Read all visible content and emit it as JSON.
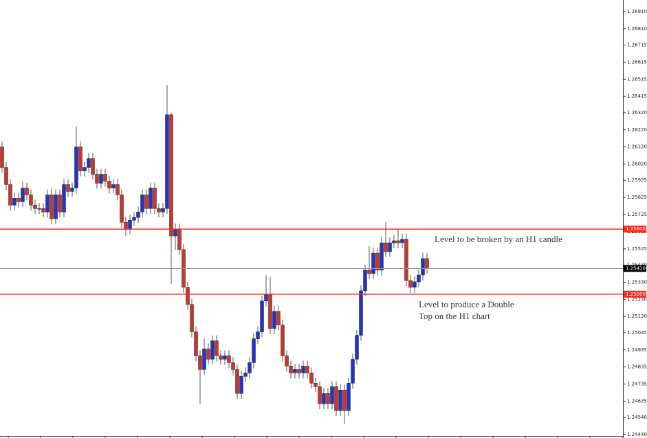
{
  "chart_data": {
    "type": "candlestick",
    "up_color": "#2233cc",
    "down_color": "#c8382a",
    "wick_color": "#555555",
    "ylim": [
      1.2442,
      1.26978
    ],
    "yticks": [
      {
        "value": 1.2691,
        "label": "1.26910"
      },
      {
        "value": 1.2681,
        "label": "1.26810"
      },
      1.26715,
      1.26615,
      1.26515,
      1.26415,
      {
        "value": 1.2632,
        "label": "1.26320"
      },
      {
        "value": 1.2622,
        "label": "1.26220"
      },
      {
        "value": 1.2612,
        "label": "1.26120"
      },
      {
        "value": 1.2602,
        "label": "1.26020"
      },
      1.25925,
      1.25825,
      1.25725,
      1.25625,
      1.25525,
      {
        "value": 1.2543,
        "label": "1.25430"
      },
      {
        "value": 1.2533,
        "label": "1.25330"
      },
      {
        "value": 1.2523,
        "label": "1.25230"
      },
      {
        "value": 1.2513,
        "label": "1.25130"
      },
      1.25035,
      1.24935,
      1.24835,
      1.24735,
      1.24635,
      {
        "value": 1.2454,
        "label": "1.24540"
      },
      {
        "value": 1.2444,
        "label": "1.24440"
      }
    ],
    "hlines": [
      {
        "value": 1.2564,
        "label": "1.25640",
        "color": "#ff2a1a",
        "box": "#ff2a1a"
      },
      {
        "value": 1.2541,
        "label": "1.25410",
        "color": "#999999",
        "box": "#000000"
      },
      {
        "value": 1.2526,
        "label": "1.25260",
        "color": "#ff2a1a",
        "box": "#ff2a1a"
      }
    ],
    "annotations": [
      {
        "lines": [
          "Level to be broken by an H1 candle"
        ]
      },
      {
        "lines": [
          "Level to produce a Double",
          "Top on the H1 chart"
        ]
      }
    ],
    "open": [
      1.2612,
      1.26,
      1.259,
      1.2578,
      1.2582,
      1.258,
      1.2588,
      1.2584,
      1.2578,
      1.2576,
      1.2576,
      1.2574,
      1.2584,
      1.257,
      1.2584,
      1.2574,
      1.259,
      1.2586,
      1.2588,
      1.2612,
      1.2598,
      1.26,
      1.26052,
      1.2596,
      1.25908,
      1.2596,
      1.2592,
      1.2588,
      1.259,
      1.2584,
      1.2568,
      1.2564,
      1.25692,
      1.25708,
      1.2574,
      1.2584,
      1.2576,
      1.2588,
      1.2576,
      1.2574,
      1.2576,
      1.26308,
      1.256,
      1.2564,
      1.2552,
      1.253,
      1.252,
      1.2504,
      1.249,
      1.2482,
      1.2494,
      1.2488,
      1.24988,
      1.249,
      1.2488,
      1.249,
      1.2486,
      1.2482,
      1.2468,
      1.2478,
      1.248,
      1.2486,
      1.25,
      1.2504,
      1.2522,
      1.2526,
      1.2506,
      1.2516,
      1.2508,
      1.249,
      1.2484,
      1.248,
      1.2482,
      1.248,
      1.2484,
      1.248,
      1.2474,
      1.2472,
      1.2462,
      1.2468,
      1.2462,
      1.2472,
      1.2458,
      1.247,
      1.2458,
      1.2474,
      1.2488,
      1.2502,
      1.2528,
      1.254,
      1.2538,
      1.255,
      1.254,
      1.2556,
      1.25508,
      1.2556,
      1.25572,
      1.2556,
      1.2558,
      1.2534,
      1.253,
      1.25332,
      1.25372,
      1.25468
    ],
    "high": [
      1.26152,
      1.26032,
      1.25932,
      1.25852,
      1.25852,
      1.2592,
      1.25912,
      1.25872,
      1.25812,
      1.25792,
      1.25792,
      1.25872,
      1.2588,
      1.25872,
      1.25872,
      1.25932,
      1.25932,
      1.25912,
      1.2624,
      1.26152,
      1.26032,
      1.26084,
      1.26084,
      1.25992,
      1.25992,
      1.25992,
      1.25952,
      1.25932,
      1.25932,
      1.25872,
      1.25712,
      1.25724,
      1.2574,
      1.25772,
      1.25872,
      1.25872,
      1.25912,
      1.25912,
      1.25792,
      1.25792,
      1.2648,
      1.2632,
      1.25672,
      1.25672,
      1.25552,
      1.25332,
      1.25232,
      1.25072,
      1.24932,
      1.25,
      1.24972,
      1.2502,
      1.2502,
      1.24932,
      1.24932,
      1.24932,
      1.24892,
      1.24852,
      1.24812,
      1.24832,
      1.24892,
      1.25032,
      1.25072,
      1.25252,
      1.25372,
      1.2536,
      1.25192,
      1.25192,
      1.25112,
      1.24932,
      1.24872,
      1.24852,
      1.24852,
      1.24872,
      1.24872,
      1.24832,
      1.24772,
      1.24752,
      1.24712,
      1.24712,
      1.24752,
      1.24752,
      1.24732,
      1.24732,
      1.24772,
      1.24912,
      1.25052,
      1.25312,
      1.25432,
      1.2554,
      1.25532,
      1.25532,
      1.25592,
      1.2568,
      1.25592,
      1.25604,
      1.2564,
      1.25612,
      1.25612,
      1.25372,
      1.25364,
      1.25404,
      1.255,
      1.255
    ],
    "low": [
      1.25968,
      1.25868,
      1.25748,
      1.25748,
      1.25768,
      1.25768,
      1.25808,
      1.25748,
      1.25728,
      1.25728,
      1.25708,
      1.25708,
      1.25668,
      1.25668,
      1.25708,
      1.25708,
      1.25828,
      1.25828,
      1.25848,
      1.25948,
      1.25948,
      1.25968,
      1.25928,
      1.25876,
      1.25876,
      1.25888,
      1.25848,
      1.25848,
      1.25808,
      1.25648,
      1.256,
      1.25608,
      1.2566,
      1.25676,
      1.25708,
      1.25728,
      1.25728,
      1.25728,
      1.25708,
      1.25708,
      1.25728,
      1.2532,
      1.2552,
      1.25488,
      1.25268,
      1.25168,
      1.25008,
      1.24868,
      1.2462,
      1.24788,
      1.24848,
      1.24848,
      1.24868,
      1.24848,
      1.24848,
      1.24828,
      1.24788,
      1.24648,
      1.24648,
      1.24748,
      1.24768,
      1.24828,
      1.24968,
      1.25008,
      1.25188,
      1.25028,
      1.25028,
      1.25048,
      1.24868,
      1.24808,
      1.24768,
      1.24768,
      1.24768,
      1.24768,
      1.24768,
      1.24708,
      1.24688,
      1.24588,
      1.24588,
      1.24588,
      1.24588,
      1.24548,
      1.24548,
      1.245,
      1.24548,
      1.24708,
      1.24848,
      1.24988,
      1.25248,
      1.25348,
      1.25348,
      1.25368,
      1.25368,
      1.25476,
      1.25476,
      1.25528,
      1.25528,
      1.25528,
      1.25308,
      1.25268,
      1.25268,
      1.253,
      1.2534,
      1.2538
    ],
    "close": [
      1.26,
      1.259,
      1.2578,
      1.2582,
      1.258,
      1.2588,
      1.2584,
      1.2578,
      1.2576,
      1.2576,
      1.2574,
      1.2584,
      1.257,
      1.2584,
      1.2574,
      1.259,
      1.2586,
      1.2588,
      1.2612,
      1.2598,
      1.26,
      1.26052,
      1.2596,
      1.25908,
      1.2596,
      1.2592,
      1.2588,
      1.259,
      1.2584,
      1.2568,
      1.2564,
      1.25692,
      1.25708,
      1.2574,
      1.2584,
      1.2576,
      1.2588,
      1.2576,
      1.2574,
      1.2576,
      1.26308,
      1.256,
      1.2564,
      1.2552,
      1.253,
      1.252,
      1.2504,
      1.249,
      1.2482,
      1.2494,
      1.2488,
      1.24988,
      1.249,
      1.2488,
      1.249,
      1.2486,
      1.2482,
      1.2468,
      1.2478,
      1.248,
      1.2486,
      1.25,
      1.2504,
      1.2522,
      1.2526,
      1.2506,
      1.2516,
      1.2508,
      1.249,
      1.2484,
      1.248,
      1.2482,
      1.248,
      1.2484,
      1.248,
      1.2474,
      1.2472,
      1.2462,
      1.2468,
      1.2462,
      1.2472,
      1.2458,
      1.247,
      1.2458,
      1.2474,
      1.2488,
      1.2502,
      1.2528,
      1.254,
      1.2538,
      1.255,
      1.254,
      1.2556,
      1.25508,
      1.2556,
      1.25572,
      1.2556,
      1.2558,
      1.2534,
      1.253,
      1.25332,
      1.25372,
      1.25468,
      1.25412
    ]
  }
}
